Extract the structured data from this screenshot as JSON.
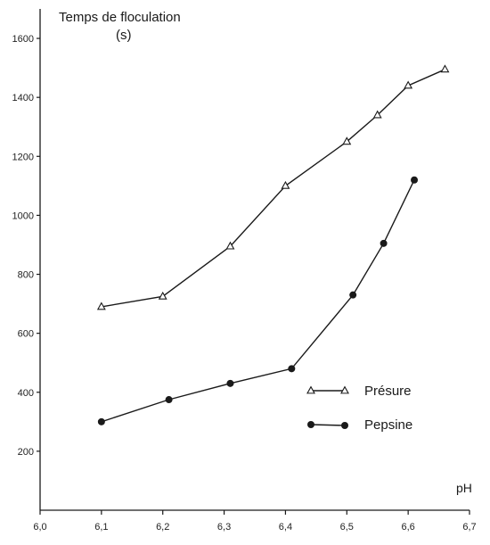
{
  "chart_data": {
    "type": "line",
    "title_line1": "Temps de floculation",
    "title_line2": "(s)",
    "xlabel": "pH",
    "ylabel": "Temps de floculation (s)",
    "xlim": [
      6.0,
      6.7
    ],
    "ylim": [
      0,
      1700
    ],
    "x_ticks": [
      {
        "value": 6.0,
        "label": "6,0"
      },
      {
        "value": 6.1,
        "label": "6,1"
      },
      {
        "value": 6.2,
        "label": "6,2"
      },
      {
        "value": 6.3,
        "label": "6,3"
      },
      {
        "value": 6.4,
        "label": "6,4"
      },
      {
        "value": 6.5,
        "label": "6,5"
      },
      {
        "value": 6.6,
        "label": "6,6"
      },
      {
        "value": 6.7,
        "label": "6,7"
      }
    ],
    "y_ticks": [
      {
        "value": 200,
        "label": "200"
      },
      {
        "value": 400,
        "label": "400"
      },
      {
        "value": 600,
        "label": "600"
      },
      {
        "value": 800,
        "label": "800"
      },
      {
        "value": 1000,
        "label": "1000"
      },
      {
        "value": 1200,
        "label": "1200"
      },
      {
        "value": 1400,
        "label": "1400"
      },
      {
        "value": 1600,
        "label": "1600"
      }
    ],
    "grid": false,
    "legend_position": "center-right",
    "series": [
      {
        "name": "Présure",
        "marker": "open-triangle",
        "x": [
          6.1,
          6.2,
          6.31,
          6.4,
          6.5,
          6.55,
          6.6,
          6.66
        ],
        "y": [
          690,
          725,
          895,
          1100,
          1250,
          1340,
          1440,
          1495
        ]
      },
      {
        "name": "Pepsine",
        "marker": "filled-circle",
        "x": [
          6.1,
          6.21,
          6.31,
          6.41,
          6.51,
          6.56,
          6.61
        ],
        "y": [
          300,
          375,
          430,
          480,
          730,
          905,
          1120
        ]
      }
    ]
  }
}
